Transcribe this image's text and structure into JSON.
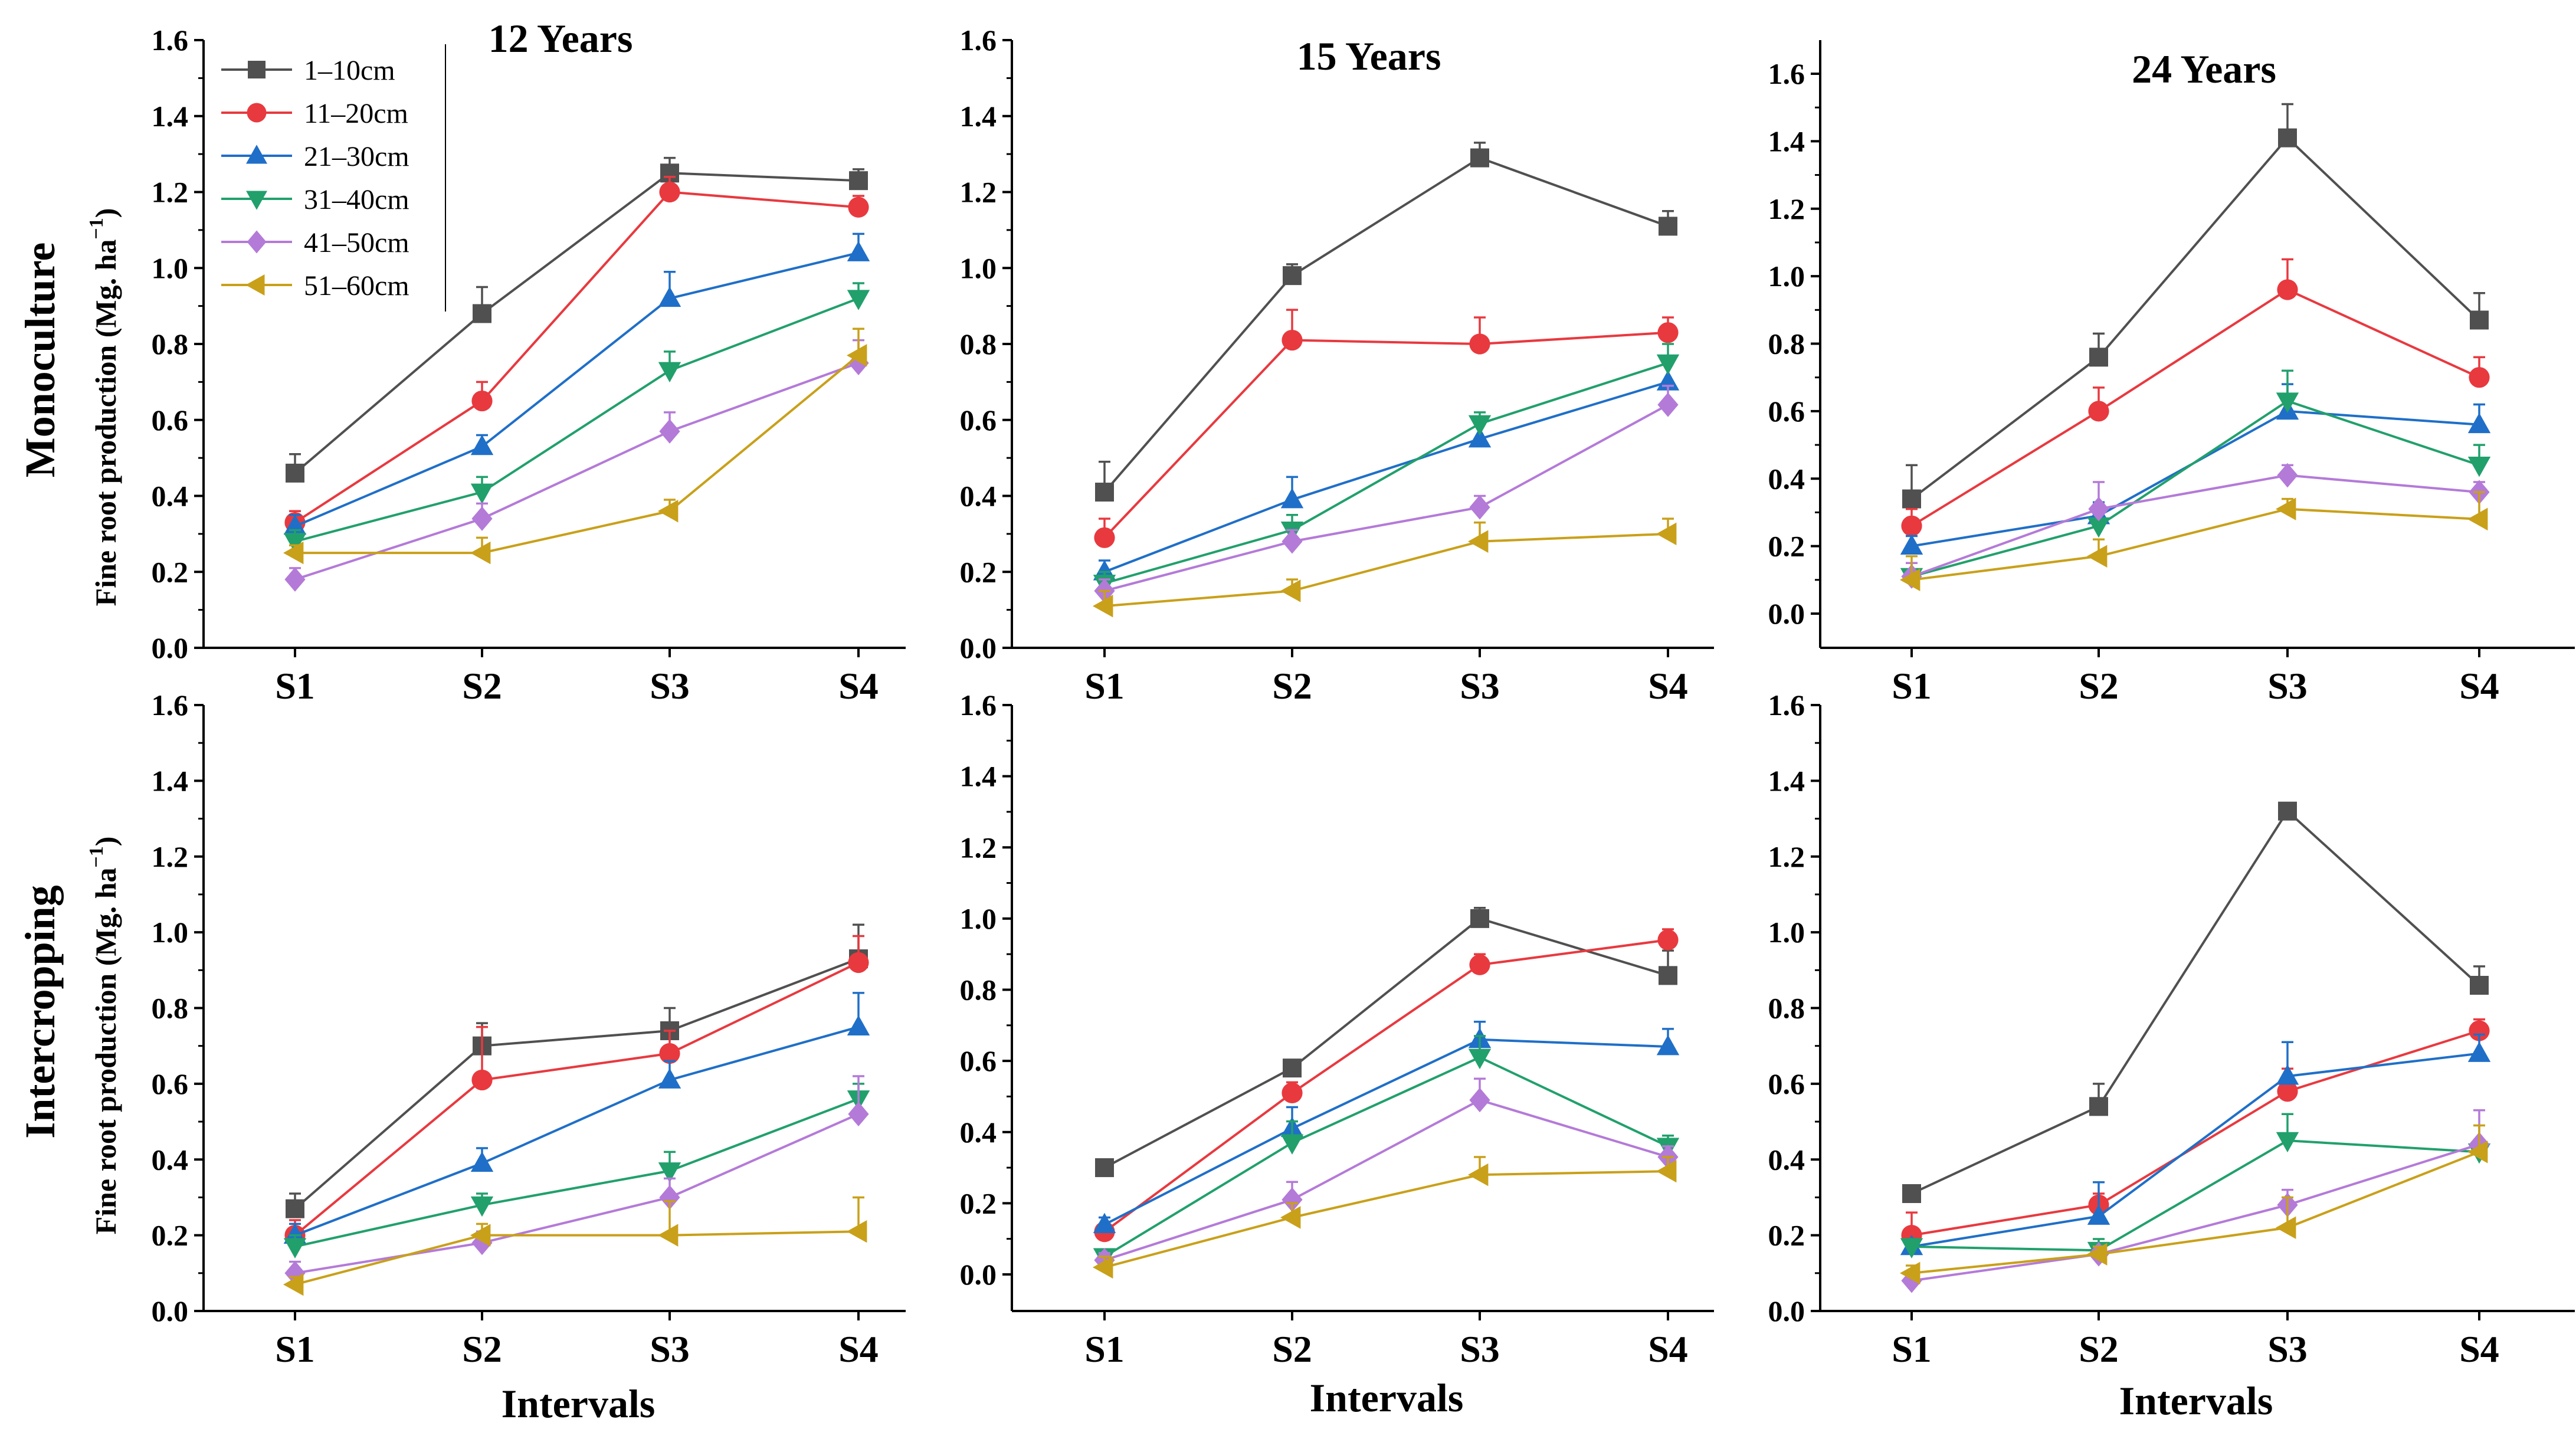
{
  "figure": {
    "row_labels": [
      "Monoculture",
      "Intercropping"
    ],
    "ylabel_main": "Fine root production (Mg. ha",
    "ylabel_sup": "−1",
    "ylabel_close": ")",
    "xlabel": "Intervals"
  },
  "colors": {
    "1-10cm": "#505050",
    "11-20cm": "#e8393f",
    "21-30cm": "#1f6fc8",
    "31-40cm": "#21a06c",
    "41-50cm": "#b47ad8",
    "51-60cm": "#c9a019"
  },
  "legend": {
    "placement": "top-left of first panel",
    "entries": [
      "1–10cm",
      "11–20cm",
      "21–30cm",
      "31–40cm",
      "41–50cm",
      "51–60cm"
    ]
  },
  "chart_data": [
    {
      "type": "line",
      "title": "12 Years",
      "row": "Monoculture",
      "ylim": [
        0,
        1.6
      ],
      "yticks": [
        "0.0",
        "0.2",
        "0.4",
        "0.6",
        "0.8",
        "1.0",
        "1.2",
        "1.4",
        "1.6"
      ],
      "categories": [
        "S1",
        "S2",
        "S3",
        "S4"
      ],
      "series": [
        {
          "name": "1–10cm",
          "marker": "square",
          "values": [
            0.46,
            0.88,
            1.25,
            1.23
          ],
          "err": [
            0.05,
            0.07,
            0.04,
            0.03
          ]
        },
        {
          "name": "11–20cm",
          "marker": "circle",
          "values": [
            0.33,
            0.65,
            1.2,
            1.16
          ],
          "err": [
            0.03,
            0.05,
            0.04,
            0.03
          ]
        },
        {
          "name": "21–30cm",
          "marker": "triangle-up",
          "values": [
            0.32,
            0.53,
            0.92,
            1.04
          ],
          "err": [
            0.03,
            0.03,
            0.07,
            0.05
          ]
        },
        {
          "name": "31–40cm",
          "marker": "triangle-down",
          "values": [
            0.28,
            0.41,
            0.73,
            0.92
          ],
          "err": [
            0.03,
            0.04,
            0.05,
            0.04
          ]
        },
        {
          "name": "41–50cm",
          "marker": "diamond",
          "values": [
            0.18,
            0.34,
            0.57,
            0.75
          ],
          "err": [
            0.03,
            0.04,
            0.05,
            0.06
          ]
        },
        {
          "name": "51–60cm",
          "marker": "triangle-left",
          "values": [
            0.25,
            0.25,
            0.36,
            0.77
          ],
          "err": [
            0.02,
            0.04,
            0.03,
            0.07
          ]
        }
      ]
    },
    {
      "type": "line",
      "title": "15 Years",
      "row": "Monoculture",
      "ylim": [
        0,
        1.6
      ],
      "yticks": [
        "0.0",
        "0.2",
        "0.4",
        "0.6",
        "0.8",
        "1.0",
        "1.2",
        "1.4",
        "1.6"
      ],
      "categories": [
        "S1",
        "S2",
        "S3",
        "S4"
      ],
      "series": [
        {
          "name": "1–10cm",
          "marker": "square",
          "values": [
            0.41,
            0.98,
            1.29,
            1.11
          ],
          "err": [
            0.08,
            0.03,
            0.04,
            0.04
          ]
        },
        {
          "name": "11–20cm",
          "marker": "circle",
          "values": [
            0.29,
            0.81,
            0.8,
            0.83
          ],
          "err": [
            0.05,
            0.08,
            0.07,
            0.04
          ]
        },
        {
          "name": "21–30cm",
          "marker": "triangle-up",
          "values": [
            0.2,
            0.39,
            0.55,
            0.7
          ],
          "err": [
            0.03,
            0.06,
            0.05,
            0.05
          ]
        },
        {
          "name": "31–40cm",
          "marker": "triangle-down",
          "values": [
            0.17,
            0.31,
            0.59,
            0.75
          ],
          "err": [
            0.03,
            0.04,
            0.03,
            0.05
          ]
        },
        {
          "name": "41–50cm",
          "marker": "diamond",
          "values": [
            0.15,
            0.28,
            0.37,
            0.64
          ],
          "err": [
            0.03,
            0.03,
            0.03,
            0.05
          ]
        },
        {
          "name": "51–60cm",
          "marker": "triangle-left",
          "values": [
            0.11,
            0.15,
            0.28,
            0.3
          ],
          "err": [
            0.04,
            0.03,
            0.05,
            0.04
          ]
        }
      ]
    },
    {
      "type": "line",
      "title": "24 Years",
      "row": "Monoculture",
      "ylim": [
        0,
        1.6
      ],
      "yticks": [
        "0.0",
        "0.2",
        "0.4",
        "0.6",
        "0.8",
        "1.0",
        "1.2",
        "1.4",
        "1.6"
      ],
      "categories": [
        "S1",
        "S2",
        "S3",
        "S4"
      ],
      "series": [
        {
          "name": "1–10cm",
          "marker": "square",
          "values": [
            0.34,
            0.76,
            1.41,
            0.87
          ],
          "err": [
            0.1,
            0.07,
            0.1,
            0.08
          ]
        },
        {
          "name": "11–20cm",
          "marker": "circle",
          "values": [
            0.26,
            0.6,
            0.96,
            0.7
          ],
          "err": [
            0.05,
            0.07,
            0.09,
            0.06
          ]
        },
        {
          "name": "21–30cm",
          "marker": "triangle-up",
          "values": [
            0.2,
            0.29,
            0.6,
            0.56
          ],
          "err": [
            0.03,
            0.04,
            0.08,
            0.06
          ]
        },
        {
          "name": "31–40cm",
          "marker": "triangle-down",
          "values": [
            0.11,
            0.26,
            0.63,
            0.44
          ],
          "err": [
            0.04,
            0.05,
            0.09,
            0.06
          ]
        },
        {
          "name": "41–50cm",
          "marker": "diamond",
          "values": [
            0.11,
            0.31,
            0.41,
            0.36
          ],
          "err": [
            0.04,
            0.08,
            0.03,
            0.03
          ]
        },
        {
          "name": "51–60cm",
          "marker": "triangle-left",
          "values": [
            0.1,
            0.17,
            0.31,
            0.28
          ],
          "err": [
            0.07,
            0.05,
            0.03,
            0.08
          ]
        }
      ]
    },
    {
      "type": "line",
      "title": "",
      "row": "Intercropping",
      "ylim": [
        0,
        1.6
      ],
      "yticks": [
        "0.0",
        "0.2",
        "0.4",
        "0.6",
        "0.8",
        "1.0",
        "1.2",
        "1.4",
        "1.6"
      ],
      "categories": [
        "S1",
        "S2",
        "S3",
        "S4"
      ],
      "series": [
        {
          "name": "1–10cm",
          "marker": "square",
          "values": [
            0.27,
            0.7,
            0.74,
            0.93
          ],
          "err": [
            0.04,
            0.06,
            0.06,
            0.09
          ]
        },
        {
          "name": "11–20cm",
          "marker": "circle",
          "values": [
            0.2,
            0.61,
            0.68,
            0.92
          ],
          "err": [
            0.04,
            0.14,
            0.06,
            0.07
          ]
        },
        {
          "name": "21–30cm",
          "marker": "triangle-up",
          "values": [
            0.2,
            0.39,
            0.61,
            0.75
          ],
          "err": [
            0.03,
            0.04,
            0.05,
            0.09
          ]
        },
        {
          "name": "31–40cm",
          "marker": "triangle-down",
          "values": [
            0.17,
            0.28,
            0.37,
            0.56
          ],
          "err": [
            0.03,
            0.03,
            0.05,
            0.04
          ]
        },
        {
          "name": "41–50cm",
          "marker": "diamond",
          "values": [
            0.1,
            0.18,
            0.3,
            0.52
          ],
          "err": [
            0.03,
            0.03,
            0.05,
            0.1
          ]
        },
        {
          "name": "51–60cm",
          "marker": "triangle-left",
          "values": [
            0.07,
            0.2,
            0.2,
            0.21
          ],
          "err": [
            0.02,
            0.03,
            0.09,
            0.09
          ]
        }
      ]
    },
    {
      "type": "line",
      "title": "",
      "row": "Intercropping",
      "ylim": [
        -0.1,
        1.6
      ],
      "yticks": [
        "0.0",
        "0.2",
        "0.4",
        "0.6",
        "0.8",
        "1.0",
        "1.2",
        "1.4",
        "1.6"
      ],
      "categories": [
        "S1",
        "S2",
        "S3",
        "S4"
      ],
      "series": [
        {
          "name": "1–10cm",
          "marker": "square",
          "values": [
            0.3,
            0.58,
            1.0,
            0.84
          ],
          "err": [
            0.02,
            0.02,
            0.03,
            0.07
          ]
        },
        {
          "name": "11–20cm",
          "marker": "circle",
          "values": [
            0.12,
            0.51,
            0.87,
            0.94
          ],
          "err": [
            0.02,
            0.03,
            0.03,
            0.03
          ]
        },
        {
          "name": "21–30cm",
          "marker": "triangle-up",
          "values": [
            0.14,
            0.41,
            0.66,
            0.64
          ],
          "err": [
            0.02,
            0.06,
            0.05,
            0.05
          ]
        },
        {
          "name": "31–40cm",
          "marker": "triangle-down",
          "values": [
            0.05,
            0.37,
            0.61,
            0.36
          ],
          "err": [
            0.02,
            0.06,
            0.06,
            0.03
          ]
        },
        {
          "name": "41–50cm",
          "marker": "diamond",
          "values": [
            0.04,
            0.21,
            0.49,
            0.33
          ],
          "err": [
            0.02,
            0.05,
            0.06,
            0.03
          ]
        },
        {
          "name": "51–60cm",
          "marker": "triangle-left",
          "values": [
            0.02,
            0.16,
            0.28,
            0.29
          ],
          "err": [
            0.03,
            0.04,
            0.05,
            0.04
          ]
        }
      ]
    },
    {
      "type": "line",
      "title": "",
      "row": "Intercropping",
      "ylim": [
        0,
        1.6
      ],
      "yticks": [
        "0.0",
        "0.2",
        "0.4",
        "0.6",
        "0.8",
        "1.0",
        "1.2",
        "1.4",
        "1.6"
      ],
      "categories": [
        "S1",
        "S2",
        "S3",
        "S4"
      ],
      "series": [
        {
          "name": "1–10cm",
          "marker": "square",
          "values": [
            0.31,
            0.54,
            1.32,
            0.86
          ],
          "err": [
            0.02,
            0.06,
            0.02,
            0.05
          ]
        },
        {
          "name": "11–20cm",
          "marker": "circle",
          "values": [
            0.2,
            0.28,
            0.58,
            0.74
          ],
          "err": [
            0.06,
            0.03,
            0.06,
            0.03
          ]
        },
        {
          "name": "21–30cm",
          "marker": "triangle-up",
          "values": [
            0.17,
            0.25,
            0.62,
            0.68
          ],
          "err": [
            0.02,
            0.09,
            0.09,
            0.05
          ]
        },
        {
          "name": "31–40cm",
          "marker": "triangle-down",
          "values": [
            0.17,
            0.16,
            0.45,
            0.42
          ],
          "err": [
            0.02,
            0.03,
            0.07,
            0.03
          ]
        },
        {
          "name": "41–50cm",
          "marker": "diamond",
          "values": [
            0.08,
            0.15,
            0.28,
            0.44
          ],
          "err": [
            0.02,
            0.02,
            0.04,
            0.09
          ]
        },
        {
          "name": "51–60cm",
          "marker": "triangle-left",
          "values": [
            0.1,
            0.15,
            0.22,
            0.42
          ],
          "err": [
            0.02,
            0.02,
            0.08,
            0.07
          ]
        }
      ]
    }
  ]
}
